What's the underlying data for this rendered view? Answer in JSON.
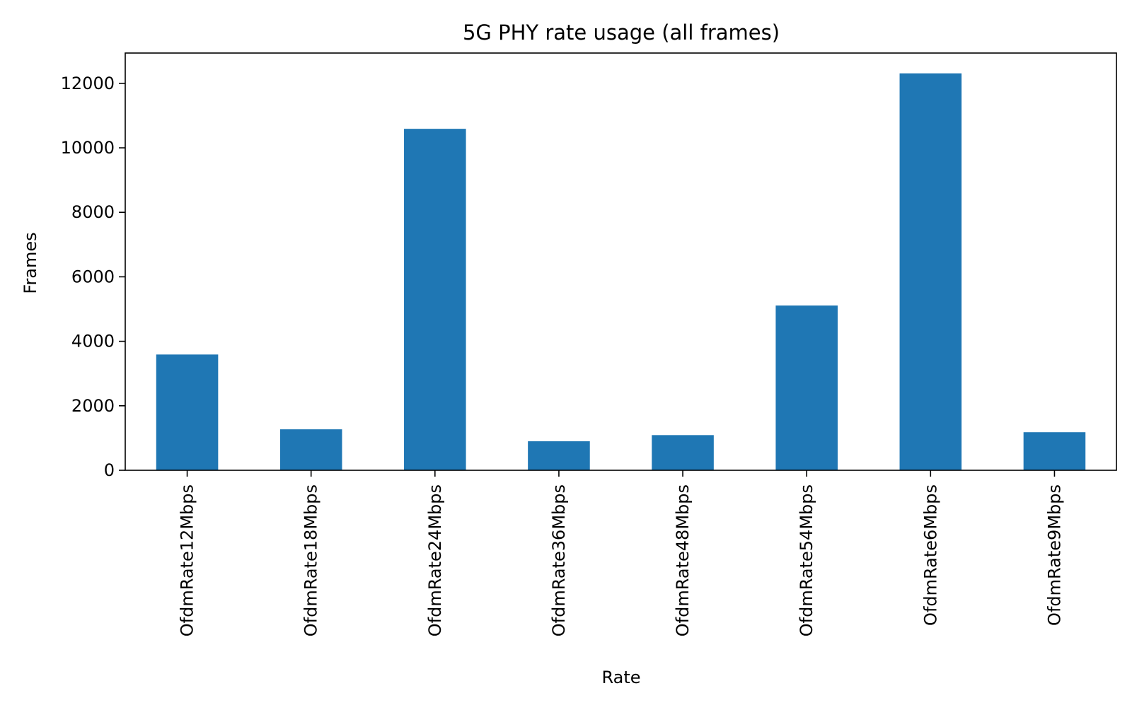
{
  "chart_data": {
    "type": "bar",
    "title": "5G PHY rate usage (all frames)",
    "xlabel": "Rate",
    "ylabel": "Frames",
    "categories": [
      "OfdmRate12Mbps",
      "OfdmRate18Mbps",
      "OfdmRate24Mbps",
      "OfdmRate36Mbps",
      "OfdmRate48Mbps",
      "OfdmRate54Mbps",
      "OfdmRate6Mbps",
      "OfdmRate9Mbps"
    ],
    "values": [
      3590,
      1270,
      10590,
      900,
      1090,
      5110,
      12310,
      1180
    ],
    "ylim": [
      0,
      12940
    ],
    "yticks": [
      0,
      2000,
      4000,
      6000,
      8000,
      10000,
      12000
    ],
    "grid": false,
    "legend": "none",
    "bar_color": "#1f77b4"
  }
}
